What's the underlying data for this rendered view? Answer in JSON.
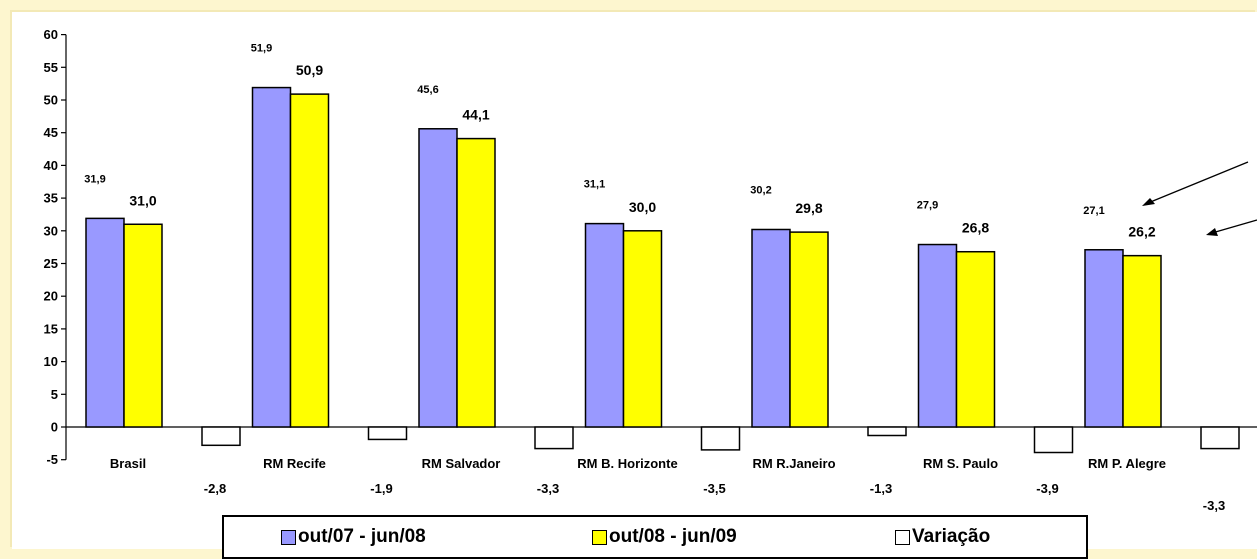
{
  "chart_data": {
    "type": "bar",
    "categories": [
      "Brasil",
      "RM Recife",
      "RM Salvador",
      "RM B. Horizonte",
      "RM R.Janeiro",
      "RM S. Paulo",
      "RM P. Alegre"
    ],
    "series": [
      {
        "name": "out/07 - jun/08",
        "values": [
          31.9,
          51.9,
          45.6,
          31.1,
          30.2,
          27.9,
          27.1
        ],
        "labels": [
          "31,9",
          "51,9",
          "45,6",
          "31,1",
          "30,2",
          "27,9",
          "27,1"
        ],
        "color": "#9999ff"
      },
      {
        "name": "out/08 - jun/09",
        "values": [
          31.0,
          50.9,
          44.1,
          30.0,
          29.8,
          26.8,
          26.2
        ],
        "labels": [
          "31,0",
          "50,9",
          "44,1",
          "30,0",
          "29,8",
          "26,8",
          "26,2"
        ],
        "color": "#ffff00"
      },
      {
        "name": "Variação",
        "values": [
          -2.8,
          -1.9,
          -3.3,
          -3.5,
          -1.3,
          -3.9,
          -3.3
        ],
        "labels": [
          "-2,8",
          "-1,9",
          "-3,3",
          "-3,5",
          "-1,3",
          "-3,9",
          "-3,3"
        ],
        "color": "#ffffff"
      }
    ],
    "yticks": [
      "60",
      "55",
      "50",
      "45",
      "40",
      "35",
      "30",
      "25",
      "20",
      "15",
      "10",
      "5",
      "0",
      "-5"
    ],
    "ylim": [
      -5,
      60
    ],
    "legend_position": "bottom",
    "grid": false
  }
}
